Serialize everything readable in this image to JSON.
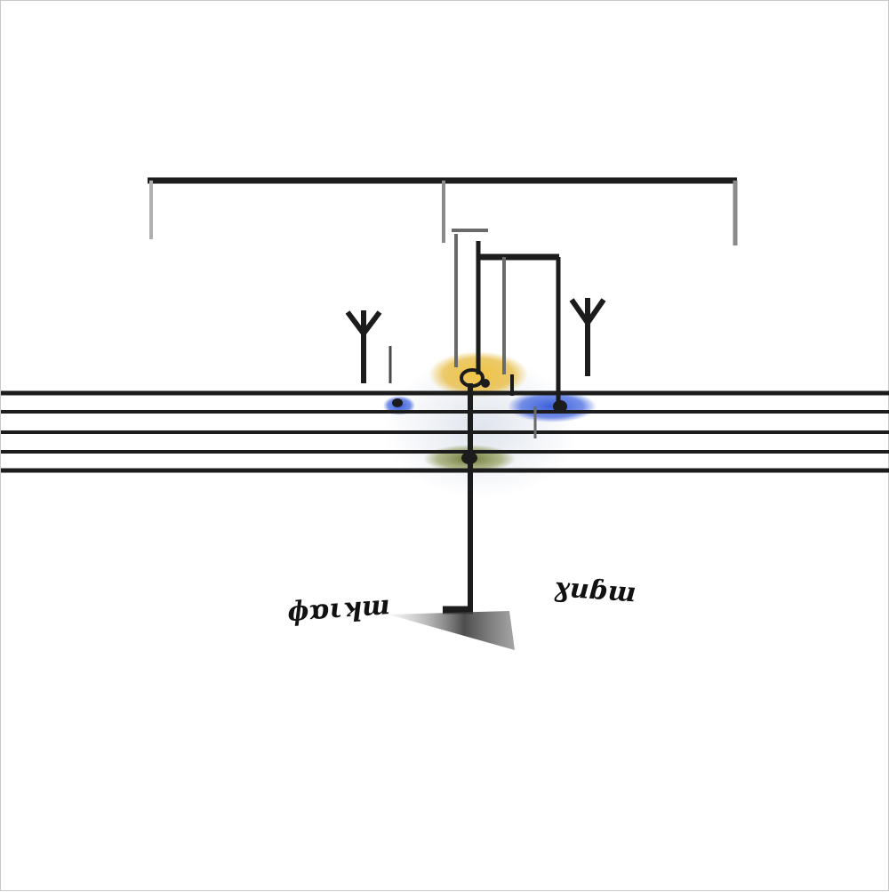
{
  "labels": {
    "left": "ɸɒιʞɯ",
    "right": "ɣuɓɯ"
  },
  "colors": {
    "ink": "#1c1c1c",
    "yellow_glow": "#e6b52c",
    "blue_glow": "#2f56d8",
    "olive_glow": "#6f7a2e",
    "grey_glow": "#b9c3d6"
  },
  "icons": {
    "left_symbol": "trident-icon",
    "right_symbol": "trident-icon"
  }
}
